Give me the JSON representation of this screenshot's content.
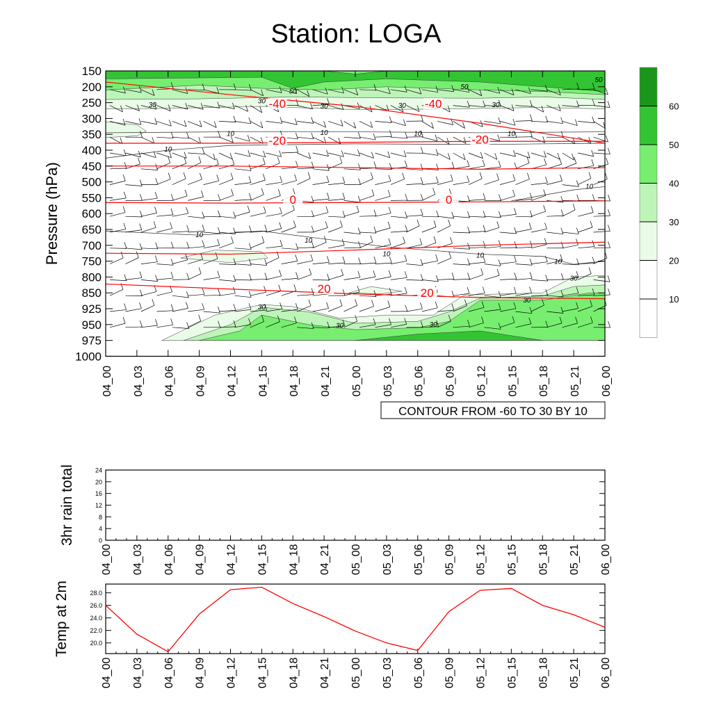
{
  "title": "Station: LOGA",
  "time_labels": [
    "04_00",
    "04_03",
    "04_06",
    "04_09",
    "04_12",
    "04_15",
    "04_18",
    "04_21",
    "05_00",
    "05_03",
    "05_06",
    "05_09",
    "05_12",
    "05_15",
    "05_18",
    "05_21",
    "06_00"
  ],
  "chart_data": [
    {
      "type": "heatmap",
      "ylabel": "Pressure (hPa)",
      "y_ticks": [
        150,
        200,
        250,
        300,
        350,
        400,
        450,
        500,
        550,
        600,
        650,
        700,
        750,
        800,
        850,
        925,
        950,
        975,
        1000
      ],
      "ylim": [
        1000,
        150
      ],
      "footer": "CONTOUR FROM -60 TO 30 BY 10",
      "colorbar": {
        "levels": [
          10,
          20,
          30,
          40,
          50,
          60
        ],
        "colors": [
          "#ffffff",
          "#ffffff",
          "#eafbe8",
          "#bdf5b8",
          "#77ee70",
          "#33c433",
          "#1a961a"
        ]
      },
      "temperature_contours": [
        {
          "label": "-40",
          "p": [
            185,
            225,
            262,
            315,
            378
          ]
        },
        {
          "label": "-20",
          "p": [
            378,
            378,
            375,
            372,
            372
          ]
        },
        {
          "label": "0",
          "p": [
            450,
            450,
            455,
            460,
            455
          ]
        },
        {
          "label": "0",
          "p": [
            565,
            567,
            565,
            563,
            560
          ]
        },
        {
          "label": "20",
          "p": [
            725,
            728,
            715,
            700,
            690
          ]
        },
        {
          "label": "20",
          "p": [
            822,
            838,
            855,
            872,
            878
          ]
        }
      ],
      "temp_labels": [
        {
          "text": "-40",
          "t": 5.5,
          "p": 262
        },
        {
          "text": "-40",
          "t": 10.5,
          "p": 262
        },
        {
          "text": "-20",
          "t": 5.5,
          "p": 378
        },
        {
          "text": "-20",
          "t": 12.0,
          "p": 375
        },
        {
          "text": "0",
          "t": 6.0,
          "p": 565
        },
        {
          "text": "0",
          "t": 11.0,
          "p": 565
        },
        {
          "text": "20",
          "t": 7.0,
          "p": 845
        },
        {
          "text": "20",
          "t": 10.3,
          "p": 862
        }
      ],
      "moisture_labels": [
        {
          "text": "50",
          "t": 6.0,
          "p": 215
        },
        {
          "text": "50",
          "t": 11.5,
          "p": 200
        },
        {
          "text": "50",
          "t": 15.8,
          "p": 178
        },
        {
          "text": "30",
          "t": 1.5,
          "p": 258
        },
        {
          "text": "30",
          "t": 5.0,
          "p": 245
        },
        {
          "text": "30",
          "t": 7.0,
          "p": 262
        },
        {
          "text": "30",
          "t": 9.5,
          "p": 260
        },
        {
          "text": "30",
          "t": 12.5,
          "p": 258
        },
        {
          "text": "10",
          "t": 4.0,
          "p": 348
        },
        {
          "text": "10",
          "t": 7.0,
          "p": 345
        },
        {
          "text": "10",
          "t": 10.0,
          "p": 348
        },
        {
          "text": "10",
          "t": 13.0,
          "p": 348
        },
        {
          "text": "10",
          "t": 2.0,
          "p": 398
        },
        {
          "text": "10",
          "t": 15.5,
          "p": 515
        },
        {
          "text": "10",
          "t": 3.0,
          "p": 668
        },
        {
          "text": "10",
          "t": 6.5,
          "p": 685
        },
        {
          "text": "10",
          "t": 9.0,
          "p": 728
        },
        {
          "text": "10",
          "t": 12.0,
          "p": 732
        },
        {
          "text": "10",
          "t": 14.5,
          "p": 752
        },
        {
          "text": "30",
          "t": 15.0,
          "p": 805
        },
        {
          "text": "30",
          "t": 5.0,
          "p": 918
        },
        {
          "text": "30",
          "t": 7.5,
          "p": 952
        },
        {
          "text": "30",
          "t": 10.5,
          "p": 950
        },
        {
          "text": "30",
          "t": 13.5,
          "p": 885
        }
      ]
    },
    {
      "type": "line",
      "ylabel": "3hr rain total",
      "y_ticks": [
        0,
        4,
        8,
        12,
        16,
        20,
        24
      ],
      "ylim": [
        0,
        24
      ],
      "values": []
    },
    {
      "type": "line",
      "ylabel": "Temp at 2m",
      "y_ticks": [
        "20.0",
        "22.0",
        "24.0",
        "26.0",
        "28.0"
      ],
      "ylim": [
        18.3,
        29.4
      ],
      "line_color": "#ff0000",
      "values": [
        26.0,
        21.4,
        18.6,
        24.6,
        28.5,
        28.9,
        26.3,
        24.2,
        21.9,
        20.0,
        18.8,
        25.0,
        28.4,
        28.7,
        26.0,
        24.5,
        22.5
      ]
    }
  ]
}
